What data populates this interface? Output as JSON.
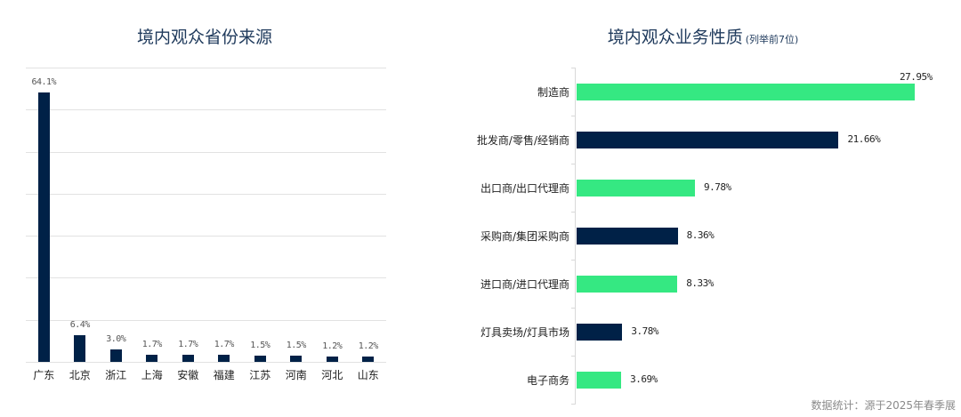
{
  "left_chart": {
    "title": "境内观众省份来源"
  },
  "right_chart": {
    "title": "境内观众业务性质",
    "subtitle": "(列举前7位)"
  },
  "footnote": "数据统计：源于2025年春季展",
  "colors": {
    "navy": "#002147",
    "green": "#35e882",
    "title": "#1f3a5c",
    "grid": "#e2e2e2"
  },
  "chart_data": [
    {
      "type": "bar",
      "title": "境内观众省份来源",
      "categories": [
        "广东",
        "北京",
        "浙江",
        "上海",
        "安徽",
        "福建",
        "江苏",
        "河南",
        "河北",
        "山东"
      ],
      "values": [
        64.1,
        6.4,
        3.0,
        1.7,
        1.7,
        1.7,
        1.5,
        1.5,
        1.2,
        1.2
      ],
      "labels": [
        "64.1%",
        "6.4%",
        "3.0%",
        "1.7%",
        "1.7%",
        "1.7%",
        "1.5%",
        "1.5%",
        "1.2%",
        "1.2%"
      ],
      "xlabel": "",
      "ylabel": "",
      "ylim": [
        0,
        70
      ],
      "grid": true,
      "unit": "%",
      "color": "#002147"
    },
    {
      "type": "bar",
      "orientation": "horizontal",
      "title": "境内观众业务性质",
      "subtitle": "(列举前7位)",
      "categories": [
        "制造商",
        "批发商/零售/经销商",
        "出口商/出口代理商",
        "采购商/集团采购商",
        "进口商/进口代理商",
        "灯具卖场/灯具市场",
        "电子商务"
      ],
      "values": [
        27.95,
        21.66,
        9.78,
        8.36,
        8.33,
        3.78,
        3.69
      ],
      "labels": [
        "27.95%",
        "21.66%",
        "9.78%",
        "8.36%",
        "8.33%",
        "3.78%",
        "3.69%"
      ],
      "colors": [
        "#35e882",
        "#002147",
        "#35e882",
        "#002147",
        "#35e882",
        "#002147",
        "#35e882"
      ],
      "xlim": [
        0,
        30
      ],
      "grid": false,
      "unit": "%"
    }
  ]
}
